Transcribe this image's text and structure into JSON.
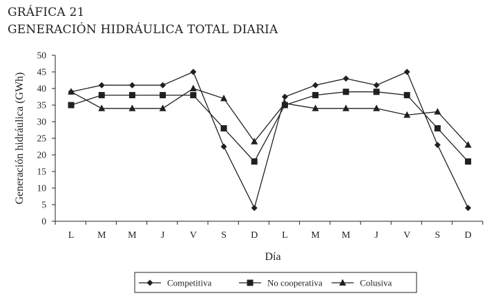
{
  "titles": {
    "line1": "GRÁFICA 21",
    "line2": "GENERACIÓN HIDRÁULICA TOTAL DIARIA"
  },
  "chart_data": {
    "type": "line",
    "title": "GENERACIÓN HIDRÁULICA TOTAL DIARIA",
    "xlabel": "Día",
    "ylabel": "Generación hidráulica (GWh)",
    "ylim": [
      0,
      50
    ],
    "yticks": [
      0,
      5,
      10,
      15,
      20,
      25,
      30,
      35,
      40,
      45,
      50
    ],
    "categories": [
      "L",
      "M",
      "M",
      "J",
      "V",
      "S",
      "D",
      "L",
      "M",
      "M",
      "J",
      "V",
      "S",
      "D"
    ],
    "grid": false,
    "legend_position": "bottom",
    "series": [
      {
        "name": "Competitiva",
        "marker": "diamond",
        "color": "#231f20",
        "values": [
          39,
          41,
          41,
          41,
          45,
          22.5,
          4,
          37.5,
          41,
          43,
          41,
          45,
          23,
          4
        ]
      },
      {
        "name": "No cooperativa",
        "marker": "square",
        "color": "#231f20",
        "values": [
          35,
          38,
          38,
          38,
          38,
          28,
          18,
          35,
          38,
          39,
          39,
          38,
          28,
          18
        ]
      },
      {
        "name": "Colusiva",
        "marker": "triangle",
        "color": "#231f20",
        "values": [
          39,
          34,
          34,
          34,
          40,
          37,
          24,
          35.5,
          34,
          34,
          34,
          32,
          33,
          23
        ]
      }
    ]
  }
}
